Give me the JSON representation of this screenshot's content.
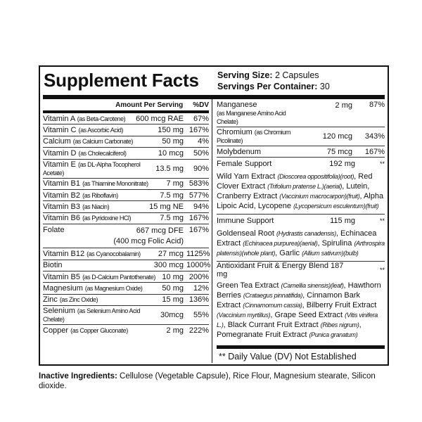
{
  "title": "Supplement Facts",
  "serving_size_label": "Serving Size:",
  "serving_size": "2 Capsules",
  "servings_label": "Servings Per Container:",
  "servings": "30",
  "header": {
    "amount": "Amount Per Serving",
    "dv": "%DV"
  },
  "left_rows": [
    {
      "name": "Vitamin A",
      "source": "(as Beta-Carotene)",
      "amount": "600 mcg RAE",
      "dv": "67%"
    },
    {
      "name": "Vitamin C",
      "source": "(as Ascorbic Acid)",
      "amount": "150 mg",
      "dv": "167%"
    },
    {
      "name": "Calcium",
      "source": "(as Calcium Carbonate)",
      "amount": "50 mg",
      "dv": "4%"
    },
    {
      "name": "Vitamin D",
      "source": "(as Cholecalciferol)",
      "amount": "10 mcg",
      "dv": "50%"
    },
    {
      "name": "Vitamin E",
      "source": "(as DL-Alpha Tocopherol Acetate)",
      "amount": "13.5 mg",
      "dv": "90%"
    },
    {
      "name": "Vitamin B1",
      "source": "(as Thiamine Mononitrate)",
      "amount": "7 mg",
      "dv": "583%"
    },
    {
      "name": "Vitamin B2",
      "source": "(as Riboflavin)",
      "amount": "7.5 mg",
      "dv": "577%"
    },
    {
      "name": "Vitamin B3",
      "source": "(as Niacin)",
      "amount": "15 mg NE",
      "dv": "94%"
    },
    {
      "name": "Vitamin B6",
      "source": "(as Pyridoxine HCl)",
      "amount": "7.5 mg",
      "dv": "167%"
    },
    {
      "name": "Folate",
      "source": "",
      "amount": "667 mcg DFE",
      "amount2": "(400 mcg Folic Acid)",
      "dv": "167%"
    },
    {
      "name": "Vitamin B12",
      "source": "(as Cyanocobalamin)",
      "amount": "27 mcg",
      "dv": "1125%"
    },
    {
      "name": "Biotin",
      "source": "",
      "amount": "300 mcg",
      "dv": "1000%"
    },
    {
      "name": "Vitamin B5",
      "source": "(as D-Calcium Pantothenate)",
      "amount": "10 mg",
      "dv": "200%"
    },
    {
      "name": "Magnesium",
      "source": "(as Magnesium Oxide)",
      "amount": "50 mg",
      "dv": "12%"
    },
    {
      "name": "Zinc",
      "source": "(as Zinc Oxide)",
      "amount": "15 mg",
      "dv": "136%"
    },
    {
      "name": "Selenium",
      "source": "(as Selenium Amino Acid Chelate)",
      "amount": "30mcg",
      "dv": "55%"
    },
    {
      "name": "Copper",
      "source": "(as Copper Gluconate)",
      "amount": "2 mg",
      "dv": "222%"
    }
  ],
  "right_rows": [
    {
      "name": "Manganese",
      "source": "(as Manganese Amino Acid Chelate)",
      "amount": "2 mg",
      "dv": "87%"
    },
    {
      "name": "Chromium",
      "source": "(as Chromium Picolinate)",
      "amount": "120 mcg",
      "dv": "343%"
    },
    {
      "name": "Molybdenum",
      "source": "",
      "amount": "75 mcg",
      "dv": "167%"
    }
  ],
  "blends": [
    {
      "name": "Female Support",
      "amount": "192 mg",
      "dv": "**",
      "ingredients": [
        [
          "Wild Yam Extract ",
          "(Dioscorea oppositifolia)(root)"
        ],
        [
          ", Red Clover Extract ",
          "(Trifolium pratense L.)(aerial)"
        ],
        [
          ", Lutein, Cranberry Extract ",
          "(Vaccinium macrocarpon)(fruit)"
        ],
        [
          ", Alpha Lipoic Acid, Lycopene ",
          "(Lycopersicum esculentum)(fruit)"
        ]
      ]
    },
    {
      "name": "Immune Support",
      "amount": "115 mg",
      "dv": "**",
      "ingredients": [
        [
          "Goldenseal Root ",
          "(Hydrastis canadensis)"
        ],
        [
          ", Echinacea Extract ",
          "(Echinacea purpurea)(aerial)"
        ],
        [
          ", Spirulina ",
          "(Arthrospira platensis)(whole plant)"
        ],
        [
          ", Garlic ",
          "(Allium sativum)(bulb)"
        ]
      ]
    },
    {
      "name": "Antioxidant Fruit & Energy Blend 187 mg",
      "amount": "",
      "dv": "**",
      "ingredients": [
        [
          "Green Tea Extract ",
          "(Camellia sinensis)(leaf)"
        ],
        [
          ", Hawthorn Berries ",
          "(Crataegus pinnatifida)"
        ],
        [
          ", Cinnamon Bark Extract ",
          "(Cinnamomum cassia)"
        ],
        [
          ", Bilberry Fruit Extract ",
          "(Vaccinium myrtillus)"
        ],
        [
          ", Grape Seed Extract ",
          "(Vitis vinifera L.)"
        ],
        [
          ", Black Currant Fruit Extract ",
          "(Ribes nigrum)"
        ],
        [
          ", Pomegranate Fruit Extract ",
          "(Punica granatum)"
        ]
      ]
    }
  ],
  "dv_note": "** Daily Value (DV) Not Established",
  "inactive_label": "Inactive Ingredients:",
  "inactive": "Cellulose (Vegetable Capsule), Rice Flour, Magnesium stearate, Silicon dioxide."
}
